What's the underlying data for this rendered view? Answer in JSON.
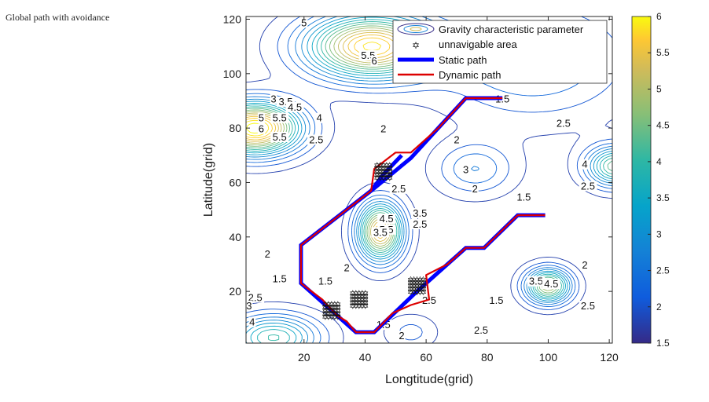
{
  "caption": "Global path with avoidance",
  "chart_data": {
    "type": "contour",
    "xlabel": "Longtitude(grid)",
    "ylabel": "Latitude(grid)",
    "xlim": [
      1,
      121
    ],
    "ylim": [
      1,
      121
    ],
    "xticks": [
      20,
      40,
      60,
      80,
      100,
      120
    ],
    "yticks": [
      20,
      40,
      60,
      80,
      100,
      120
    ],
    "colorbar": {
      "range": [
        1.5,
        6
      ],
      "ticks": [
        1.5,
        2,
        2.5,
        3,
        3.5,
        4,
        4.5,
        5,
        5.5,
        6
      ]
    },
    "legend": {
      "location": "top-right",
      "entries": [
        {
          "label": "Gravity characteristic parameter",
          "kind": "contour"
        },
        {
          "label": "unnavigable area",
          "kind": "marker"
        },
        {
          "label": "Static path",
          "kind": "line",
          "color": "#0000ff"
        },
        {
          "label": "Dynamic path",
          "kind": "line",
          "color": "#dd0000"
        }
      ]
    },
    "contour_labels": [
      {
        "text": "5",
        "x": 20,
        "y": 118
      },
      {
        "text": "5.5",
        "x": 41,
        "y": 106
      },
      {
        "text": "6",
        "x": 43,
        "y": 104
      },
      {
        "text": "3",
        "x": 10,
        "y": 90
      },
      {
        "text": "3.5",
        "x": 14,
        "y": 89
      },
      {
        "text": "4.5",
        "x": 17,
        "y": 87
      },
      {
        "text": "5",
        "x": 6,
        "y": 83
      },
      {
        "text": "5.5",
        "x": 12,
        "y": 83
      },
      {
        "text": "4",
        "x": 25,
        "y": 83
      },
      {
        "text": "6",
        "x": 6,
        "y": 79
      },
      {
        "text": "5.5",
        "x": 12,
        "y": 76
      },
      {
        "text": "2.5",
        "x": 24,
        "y": 75
      },
      {
        "text": "2",
        "x": 46,
        "y": 79
      },
      {
        "text": "1.5",
        "x": 85,
        "y": 90
      },
      {
        "text": "2.5",
        "x": 105,
        "y": 81
      },
      {
        "text": "2",
        "x": 70,
        "y": 75
      },
      {
        "text": "3",
        "x": 73,
        "y": 64
      },
      {
        "text": "2",
        "x": 76,
        "y": 57
      },
      {
        "text": "2.5",
        "x": 51,
        "y": 57
      },
      {
        "text": "3.5",
        "x": 58,
        "y": 48
      },
      {
        "text": "4.5",
        "x": 47,
        "y": 46
      },
      {
        "text": "5.5",
        "x": 47,
        "y": 42
      },
      {
        "text": "3.5",
        "x": 45,
        "y": 41
      },
      {
        "text": "2.5",
        "x": 58,
        "y": 44
      },
      {
        "text": "1.5",
        "x": 92,
        "y": 54
      },
      {
        "text": "4",
        "x": 112,
        "y": 66
      },
      {
        "text": "2.5",
        "x": 113,
        "y": 58
      },
      {
        "text": "2",
        "x": 112,
        "y": 29
      },
      {
        "text": "2",
        "x": 8,
        "y": 33
      },
      {
        "text": "1.5",
        "x": 12,
        "y": 24
      },
      {
        "text": "1.5",
        "x": 27,
        "y": 23
      },
      {
        "text": "2",
        "x": 34,
        "y": 28
      },
      {
        "text": "2.5",
        "x": 4,
        "y": 17
      },
      {
        "text": "3",
        "x": 2,
        "y": 14
      },
      {
        "text": "4",
        "x": 3,
        "y": 8
      },
      {
        "text": "1.5",
        "x": 46,
        "y": 7
      },
      {
        "text": "2.5",
        "x": 78,
        "y": 5
      },
      {
        "text": "1.5",
        "x": 83,
        "y": 16
      },
      {
        "text": "2",
        "x": 52,
        "y": 3
      },
      {
        "text": "2.5",
        "x": 61,
        "y": 16
      },
      {
        "text": "3.5",
        "x": 96,
        "y": 23
      },
      {
        "text": "4.5",
        "x": 101,
        "y": 22
      },
      {
        "text": "2.5",
        "x": 113,
        "y": 14
      }
    ],
    "unnavigable_areas": [
      {
        "x": 46,
        "y": 64
      },
      {
        "x": 29,
        "y": 13
      },
      {
        "x": 38,
        "y": 17
      },
      {
        "x": 57,
        "y": 22
      }
    ],
    "static_paths": [
      [
        [
          85,
          91
        ],
        [
          73,
          91
        ],
        [
          64,
          80
        ],
        [
          55,
          69
        ],
        [
          42,
          57
        ],
        [
          19,
          37
        ],
        [
          19,
          23
        ],
        [
          29,
          13
        ],
        [
          37,
          5
        ],
        [
          43,
          5
        ],
        [
          57,
          20
        ],
        [
          67,
          30
        ],
        [
          73,
          36
        ],
        [
          79,
          36
        ],
        [
          90,
          48
        ],
        [
          99,
          48
        ]
      ],
      [
        [
          42,
          57
        ],
        [
          46,
          63
        ],
        [
          52,
          70
        ]
      ]
    ],
    "dynamic_paths": [
      [
        [
          85,
          91
        ],
        [
          73,
          91
        ],
        [
          64,
          80
        ],
        [
          55,
          71
        ],
        [
          50,
          71
        ],
        [
          43,
          65
        ],
        [
          42,
          57
        ],
        [
          19,
          37
        ],
        [
          19,
          23
        ],
        [
          26,
          17
        ],
        [
          31,
          11
        ],
        [
          34,
          9
        ],
        [
          37,
          5
        ],
        [
          43,
          5
        ],
        [
          49,
          12
        ],
        [
          55,
          15
        ],
        [
          61,
          17
        ],
        [
          60,
          26
        ],
        [
          67,
          30
        ],
        [
          73,
          36
        ],
        [
          79,
          36
        ],
        [
          90,
          48
        ],
        [
          99,
          48
        ]
      ]
    ]
  }
}
